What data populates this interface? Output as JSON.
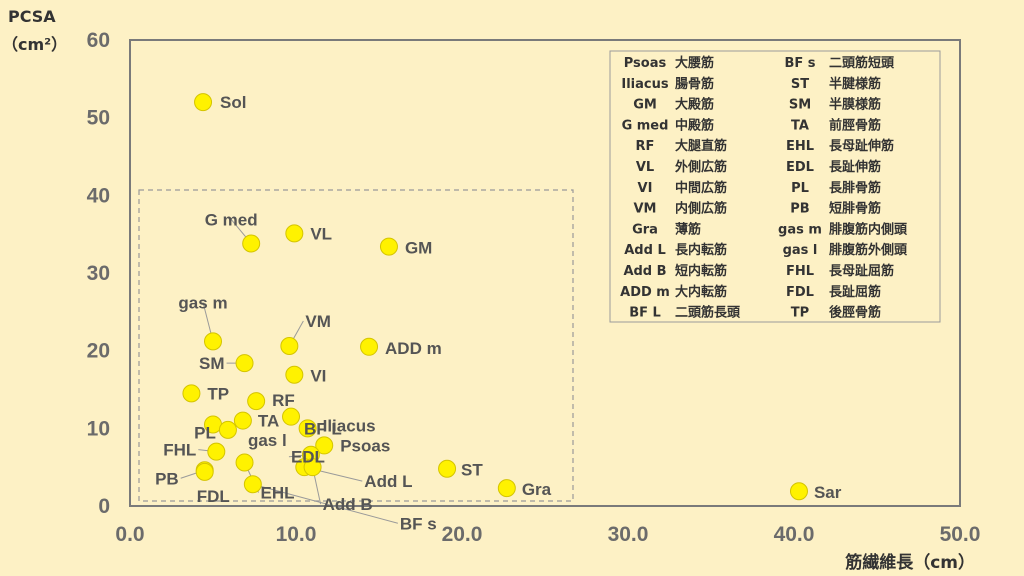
{
  "chart_data": {
    "type": "scatter",
    "xlabel": "筋繊維長（cm）",
    "ylabel": [
      "PCSA",
      "（cm²）"
    ],
    "xlim": [
      0,
      50
    ],
    "ylim": [
      0,
      60
    ],
    "x_ticks": [
      "0.0",
      "10.0",
      "20.0",
      "30.0",
      "40.0",
      "50.0"
    ],
    "y_ticks": [
      "0",
      "10",
      "20",
      "30",
      "40",
      "50",
      "60"
    ],
    "marker_color": "#FFF200",
    "grid": false,
    "points": [
      {
        "label": "Sol",
        "x": 4.4,
        "y": 52.0
      },
      {
        "label": "G med",
        "x": 7.3,
        "y": 33.8
      },
      {
        "label": "VL",
        "x": 9.9,
        "y": 35.1
      },
      {
        "label": "GM",
        "x": 15.6,
        "y": 33.4
      },
      {
        "label": "gas m",
        "x": 5.0,
        "y": 21.2
      },
      {
        "label": "VM",
        "x": 9.6,
        "y": 20.6
      },
      {
        "label": "ADD m",
        "x": 14.4,
        "y": 20.5
      },
      {
        "label": "SM",
        "x": 6.9,
        "y": 18.4
      },
      {
        "label": "VI",
        "x": 9.9,
        "y": 16.9
      },
      {
        "label": "TP",
        "x": 3.7,
        "y": 14.5
      },
      {
        "label": "RF",
        "x": 7.6,
        "y": 13.5
      },
      {
        "label": "BF L",
        "x": 9.7,
        "y": 11.5
      },
      {
        "label": "TA",
        "x": 6.8,
        "y": 11.0
      },
      {
        "label": "PL",
        "x": 5.0,
        "y": 10.5
      },
      {
        "label": "Iliacus",
        "x": 10.7,
        "y": 10.0
      },
      {
        "label": "gas l",
        "x": 5.9,
        "y": 9.8
      },
      {
        "label": "Psoas",
        "x": 11.7,
        "y": 7.8
      },
      {
        "label": "FHL",
        "x": 5.2,
        "y": 7.0
      },
      {
        "label": "EDL",
        "x": 10.9,
        "y": 6.6
      },
      {
        "label": "EHL",
        "x": 6.9,
        "y": 5.6
      },
      {
        "label": "Add L",
        "x": 10.5,
        "y": 5.0
      },
      {
        "label": "Add B",
        "x": 11.0,
        "y": 5.0
      },
      {
        "label": "ST",
        "x": 19.1,
        "y": 4.8
      },
      {
        "label": "PB",
        "x": 4.5,
        "y": 4.6
      },
      {
        "label": "FDL",
        "x": 4.5,
        "y": 4.4
      },
      {
        "label": "BF s",
        "x": 7.4,
        "y": 2.8
      },
      {
        "label": "Gra",
        "x": 22.7,
        "y": 2.3
      },
      {
        "label": "Sar",
        "x": 40.3,
        "y": 1.9
      }
    ],
    "legend": [
      [
        "Psoas",
        "大腰筋"
      ],
      [
        "Iliacus",
        "腸骨筋"
      ],
      [
        "GM",
        "大殿筋"
      ],
      [
        "G med",
        "中殿筋"
      ],
      [
        "RF",
        "大腿直筋"
      ],
      [
        "VL",
        "外側広筋"
      ],
      [
        "VI",
        "中間広筋"
      ],
      [
        "VM",
        "内側広筋"
      ],
      [
        "Gra",
        "薄筋"
      ],
      [
        "Add L",
        "長内転筋"
      ],
      [
        "Add B",
        "短内転筋"
      ],
      [
        "ADD m",
        "大内転筋"
      ],
      [
        "BF L",
        "二頭筋長頭"
      ],
      [
        "BF s",
        "二頭筋短頭"
      ],
      [
        "ST",
        "半腱様筋"
      ],
      [
        "SM",
        "半膜様筋"
      ],
      [
        "TA",
        "前脛骨筋"
      ],
      [
        "EHL",
        "長母趾伸筋"
      ],
      [
        "EDL",
        "長趾伸筋"
      ],
      [
        "PL",
        "長腓骨筋"
      ],
      [
        "PB",
        "短腓骨筋"
      ],
      [
        "gas m",
        "腓腹筋内側頭"
      ],
      [
        "gas l",
        "腓腹筋外側頭"
      ],
      [
        "FHL",
        "長母趾屈筋"
      ],
      [
        "FDL",
        "長趾屈筋"
      ],
      [
        "TP",
        "後脛骨筋"
      ]
    ],
    "legend_placement": "top-right"
  }
}
